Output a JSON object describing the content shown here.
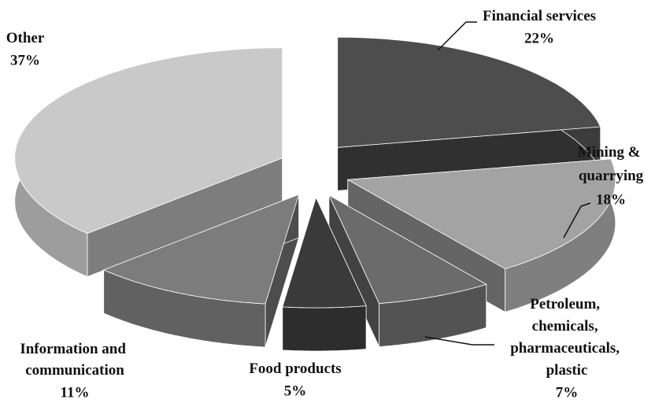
{
  "chart_data": {
    "type": "pie3d",
    "categories": [
      "Financial services",
      "Mining & quarrying",
      "Petroleum, chemicals, pharmaceuticals, plastic",
      "Food products",
      "Information and communication",
      "Other"
    ],
    "values": [
      22,
      18,
      7,
      5,
      11,
      37
    ],
    "value_labels": [
      "22%",
      "18%",
      "7%",
      "5%",
      "11%",
      "37%"
    ],
    "colors": [
      "#4d4d4d",
      "#a3a3a3",
      "#6b6b6b",
      "#3a3a3a",
      "#7c7c7c",
      "#c9c9c9"
    ]
  }
}
